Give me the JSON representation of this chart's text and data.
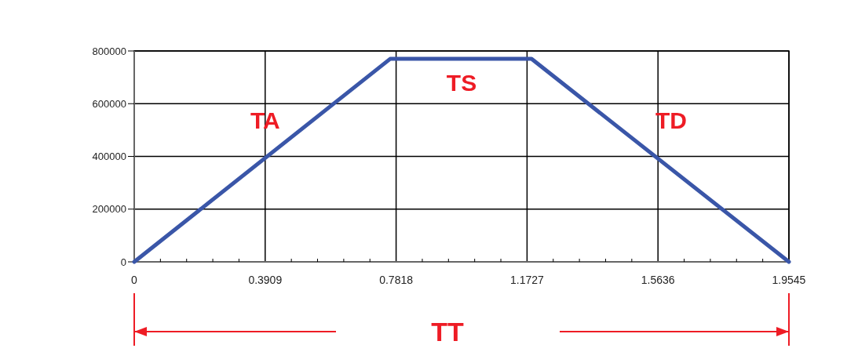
{
  "chart_data": {
    "type": "line",
    "x": [
      0,
      0.764,
      1.186,
      1.9545
    ],
    "series": [
      {
        "color": "#3a56a8",
        "values": [
          0,
          770000,
          770000,
          0
        ]
      }
    ],
    "xlim": [
      0,
      1.9545
    ],
    "xticks": [
      0,
      0.3909,
      0.7818,
      1.1727,
      1.5636,
      1.9545
    ],
    "ylim": [
      0,
      800000
    ],
    "yticks": [
      0,
      200000,
      400000,
      600000,
      800000
    ],
    "grid": true,
    "marker": "none",
    "line_style": "solid",
    "annotations": [
      "TA",
      "TS",
      "TD",
      "TT"
    ]
  }
}
